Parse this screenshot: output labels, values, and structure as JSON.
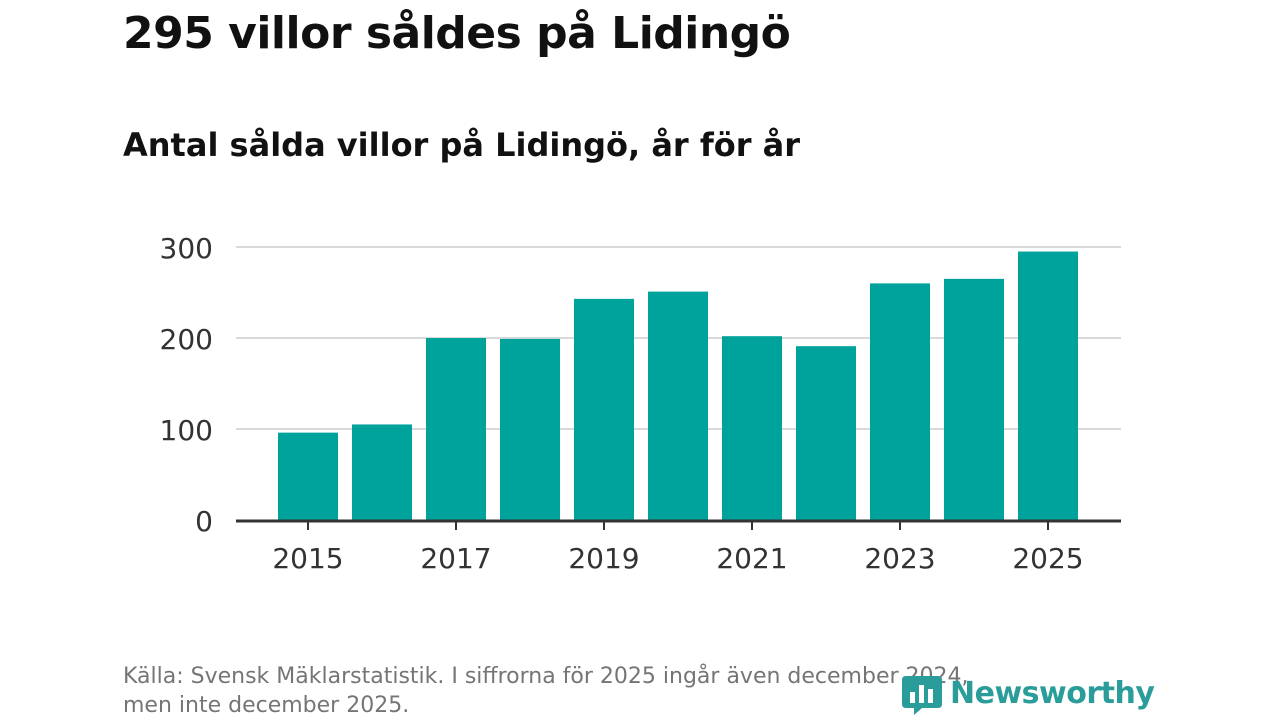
{
  "header": {
    "title": "295 villor såldes på Lidingö",
    "subtitle": "Antal sålda villor på Lidingö, år för år"
  },
  "footer": {
    "source_line1": "Källa: Svensk Mäklarstatistik. I siffrorna för 2025 ingår även december 2024,",
    "source_line2": "men inte december 2025."
  },
  "brand": {
    "name": "Newsworthy",
    "icon": "bar-chart-icon",
    "color": "#2a9d9a"
  },
  "colors": {
    "bar": "#00a39b",
    "grid": "#d9d9d9",
    "axis": "#333333"
  },
  "chart_data": {
    "type": "bar",
    "title": "Antal sålda villor på Lidingö, år för år",
    "xlabel": "",
    "ylabel": "",
    "categories": [
      "2015",
      "2016",
      "2017",
      "2018",
      "2019",
      "2020",
      "2021",
      "2022",
      "2023",
      "2024",
      "2025"
    ],
    "values": [
      96,
      105,
      200,
      199,
      243,
      251,
      202,
      191,
      260,
      265,
      295
    ],
    "ylim": [
      0,
      300
    ],
    "yticks": [
      "0",
      "100",
      "200",
      "300"
    ],
    "xticks": [
      "2015",
      "2017",
      "2019",
      "2021",
      "2023",
      "2025"
    ],
    "grid": true
  }
}
